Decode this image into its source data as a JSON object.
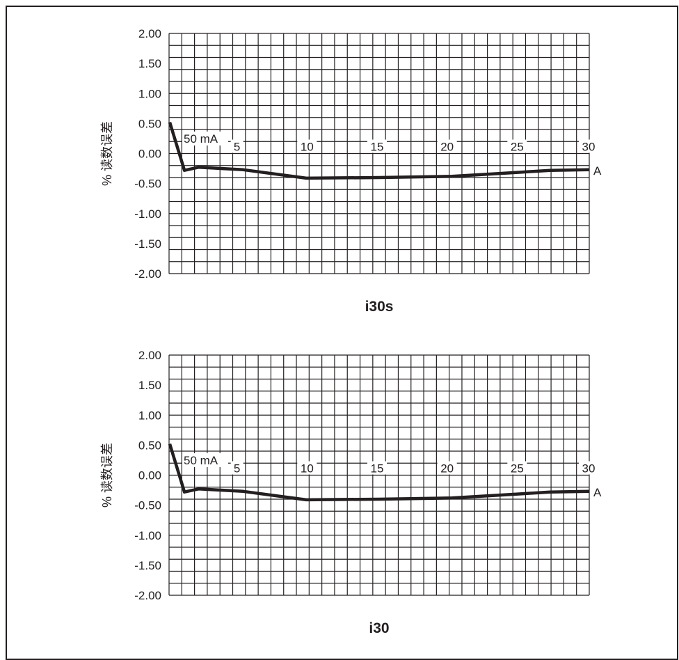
{
  "colors": {
    "ink": "#231f20",
    "background": "#ffffff"
  },
  "chart_data": [
    {
      "type": "line",
      "title": "i30s",
      "ylabel": "% 读数误差",
      "x_unit": "A",
      "annotation": "50 mA",
      "xlim": [
        0,
        30
      ],
      "ylim": [
        -2.0,
        2.0
      ],
      "grid": true,
      "x_ticks": [
        5,
        10,
        15,
        20,
        25,
        30
      ],
      "x_tick_labels": [
        "5",
        "10",
        "15",
        "20",
        "25",
        "30"
      ],
      "y_ticks": [
        2.0,
        1.5,
        1.0,
        0.5,
        0.0,
        -0.5,
        -1.0,
        -1.5,
        -2.0
      ],
      "y_tick_labels": [
        "2.00",
        "1.50",
        "1.00",
        "0.50",
        "0.00",
        "-0.50",
        "-1.00",
        "-1.50",
        "-2.00"
      ],
      "series": [
        {
          "x": [
            0.05,
            1.1,
            2.1,
            5.3,
            9.8,
            15.0,
            20.2,
            25.2,
            27.2,
            30.0
          ],
          "y": [
            0.52,
            -0.28,
            -0.23,
            -0.27,
            -0.41,
            -0.4,
            -0.38,
            -0.31,
            -0.28,
            -0.27
          ]
        }
      ]
    },
    {
      "type": "line",
      "title": "i30",
      "ylabel": "% 读数误差",
      "x_unit": "A",
      "annotation": "50 mA",
      "xlim": [
        0,
        30
      ],
      "ylim": [
        -2.0,
        2.0
      ],
      "grid": true,
      "x_ticks": [
        5,
        10,
        15,
        20,
        25,
        30
      ],
      "x_tick_labels": [
        "5",
        "10",
        "15",
        "20",
        "25",
        "30"
      ],
      "y_ticks": [
        2.0,
        1.5,
        1.0,
        0.5,
        0.0,
        -0.5,
        -1.0,
        -1.5,
        -2.0
      ],
      "y_tick_labels": [
        "2.00",
        "1.50",
        "1.00",
        "0.50",
        "0.00",
        "-0.50",
        "-1.00",
        "-1.50",
        "-2.00"
      ],
      "series": [
        {
          "x": [
            0.05,
            1.1,
            2.1,
            5.3,
            9.8,
            15.0,
            20.2,
            25.2,
            27.2,
            30.0
          ],
          "y": [
            0.52,
            -0.28,
            -0.23,
            -0.27,
            -0.41,
            -0.4,
            -0.38,
            -0.31,
            -0.28,
            -0.27
          ]
        }
      ]
    }
  ]
}
